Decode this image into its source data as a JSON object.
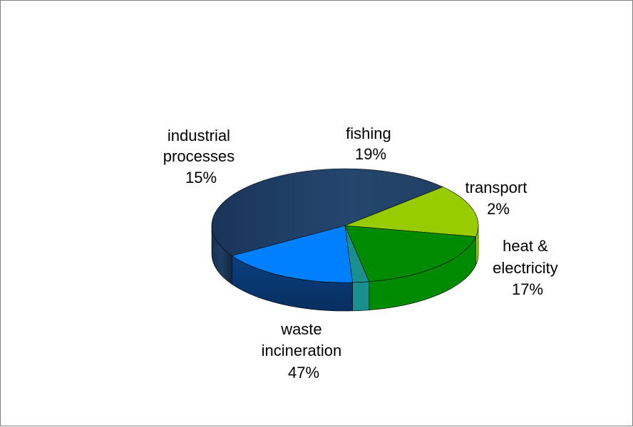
{
  "chart_data": {
    "type": "pie",
    "style": "3d",
    "title": "",
    "slices": [
      {
        "label": "waste incineration",
        "value": 47,
        "pct_label": "47%",
        "color": "#1f3f66"
      },
      {
        "label": "industrial processes",
        "value": 15,
        "pct_label": "15%",
        "color": "#99cc00"
      },
      {
        "label": "fishing",
        "value": 19,
        "pct_label": "19%",
        "color": "#008a00"
      },
      {
        "label": "transport",
        "value": 2,
        "pct_label": "2%",
        "color": "#1a8f8f"
      },
      {
        "label": "heat & electricity",
        "value": 17,
        "pct_label": "17%",
        "color": "#0080ff"
      }
    ],
    "legend": "none"
  },
  "labels": {
    "waste": {
      "line1": "waste",
      "line2": "incineration",
      "pct": "47%"
    },
    "industrial": {
      "line1": "industrial",
      "line2": "processes",
      "pct": "15%"
    },
    "fishing": {
      "line1": "fishing",
      "pct": "19%"
    },
    "transport": {
      "line1": "transport",
      "pct": "2%"
    },
    "heat": {
      "line1": "heat &",
      "line2": "electricity",
      "pct": "17%"
    }
  }
}
